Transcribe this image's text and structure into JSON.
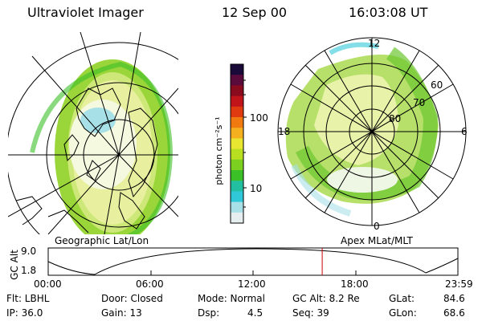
{
  "header": {
    "title": "Ultraviolet Imager",
    "date": "12 Sep 00",
    "time": "16:03:08 UT"
  },
  "left_panel": {
    "caption": "Geographic Lat/Lon"
  },
  "right_panel": {
    "caption": "Apex MLat/MLT",
    "mlt_labels": {
      "top": "12",
      "left": "18",
      "right": "6",
      "bottom": "0"
    },
    "lat_labels": [
      "60",
      "70",
      "80"
    ]
  },
  "colorbar": {
    "unit_label": "photon cm⁻²s⁻¹",
    "tick_labels": [
      "100",
      "10"
    ],
    "colors": [
      "#1a0a3a",
      "#5a0b3c",
      "#8a0a1e",
      "#c0141a",
      "#e03a10",
      "#f07a10",
      "#f5b020",
      "#e8e630",
      "#b8e020",
      "#7cd020",
      "#3cc028",
      "#22c0a0",
      "#30c8d8",
      "#a8e0e8",
      "#e6eef0"
    ]
  },
  "altitude_plot": {
    "axis_label": "GC Alt",
    "y_ticks": [
      "9.0",
      "1.8"
    ],
    "x_ticks": [
      "00:00",
      "06:00",
      "12:00",
      "18:00",
      "23:59"
    ],
    "current_time_fraction": 0.6688
  },
  "status": {
    "row1": {
      "flt": "Flt: LBHL",
      "door": "Door: Closed",
      "mode": "Mode: Normal",
      "gc_alt": "GC Alt: 8.2 Re",
      "glat_label": "GLat:",
      "glat_value": "84.6"
    },
    "row2": {
      "ip": "IP: 36.0",
      "gain": "Gain: 13",
      "dsp_label": "Dsp:",
      "dsp_value": "4.5",
      "seq": "Seq: 39",
      "glon_label": "GLon:",
      "glon_value": "68.6"
    }
  }
}
